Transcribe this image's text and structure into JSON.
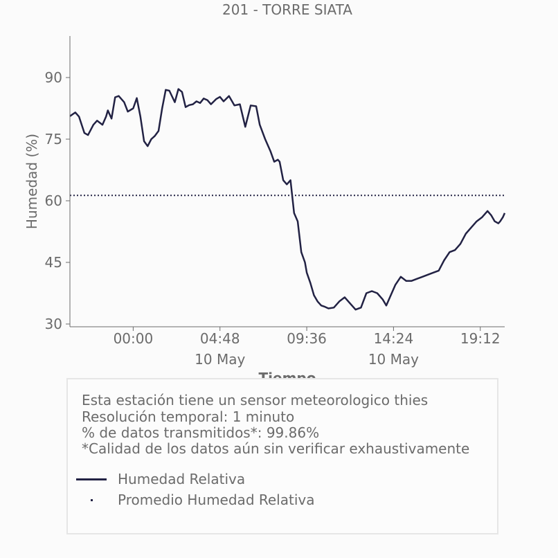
{
  "chart_data": {
    "type": "line",
    "title": "201 - TORRE SIATA",
    "xlabel": "Tiempo",
    "ylabel": "Humedad (%)",
    "ylim": [
      29.3,
      90.0
    ],
    "y_ticks": [
      30,
      45,
      60,
      75,
      90
    ],
    "y_tick_labels": [
      "30",
      "45",
      "60",
      "75",
      "90"
    ],
    "x_ticks": [
      {
        "label": "00:00",
        "sublabel": "",
        "hour": 0.0
      },
      {
        "label": "04:48",
        "sublabel": "10 May",
        "hour": 4.8
      },
      {
        "label": "09:36",
        "sublabel": "",
        "hour": 9.6
      },
      {
        "label": "14:24",
        "sublabel": "10 May",
        "hour": 14.4
      },
      {
        "label": "19:12",
        "sublabel": "",
        "hour": 19.2
      }
    ],
    "x_range_hours": [
      -3.5,
      20.55
    ],
    "grid": false,
    "legend_placement": "bottom",
    "series": [
      {
        "name": "Humedad Relativa",
        "style": "solid",
        "color": "#222244",
        "x_hours": [
          -3.5,
          -3.2,
          -3.0,
          -2.7,
          -2.5,
          -2.2,
          -2.0,
          -1.7,
          -1.5,
          -1.4,
          -1.2,
          -1.0,
          -0.8,
          -0.5,
          -0.3,
          0.0,
          0.2,
          0.4,
          0.6,
          0.8,
          1.0,
          1.2,
          1.4,
          1.6,
          1.8,
          2.0,
          2.3,
          2.5,
          2.7,
          2.9,
          3.1,
          3.3,
          3.5,
          3.7,
          3.9,
          4.1,
          4.3,
          4.6,
          4.8,
          5.0,
          5.3,
          5.6,
          5.9,
          6.2,
          6.5,
          6.8,
          7.0,
          7.3,
          7.6,
          7.8,
          8.0,
          8.1,
          8.3,
          8.5,
          8.7,
          8.9,
          9.1,
          9.3,
          9.5,
          9.6,
          9.8,
          10.0,
          10.2,
          10.4,
          10.6,
          10.8,
          11.1,
          11.4,
          11.7,
          12.0,
          12.3,
          12.6,
          12.9,
          13.2,
          13.5,
          13.8,
          14.0,
          14.2,
          14.5,
          14.8,
          15.1,
          15.4,
          15.7,
          16.0,
          16.3,
          16.6,
          16.9,
          17.2,
          17.5,
          17.8,
          18.1,
          18.4,
          18.7,
          19.0,
          19.3,
          19.6,
          19.8,
          20.0,
          20.2,
          20.3,
          20.45,
          20.55
        ],
        "y": [
          80.6,
          81.5,
          80.5,
          76.5,
          76.0,
          78.5,
          79.5,
          78.5,
          80.5,
          82.0,
          80.0,
          85.2,
          85.5,
          84.0,
          81.7,
          82.5,
          85.0,
          80.5,
          74.5,
          73.3,
          75.0,
          75.8,
          77.0,
          82.5,
          87.0,
          86.8,
          84.0,
          87.2,
          86.5,
          82.8,
          83.3,
          83.5,
          84.2,
          83.8,
          84.9,
          84.5,
          83.5,
          84.8,
          85.3,
          84.2,
          85.5,
          83.2,
          83.5,
          78.0,
          83.2,
          83.0,
          78.5,
          75.0,
          72.0,
          69.5,
          70.0,
          69.5,
          65.0,
          64.0,
          65.0,
          57.0,
          55.0,
          47.5,
          45.0,
          42.5,
          40.0,
          37.0,
          35.5,
          34.5,
          34.2,
          33.8,
          34.0,
          35.5,
          36.5,
          35.0,
          33.5,
          34.0,
          37.5,
          38.0,
          37.5,
          36.0,
          34.5,
          36.5,
          39.5,
          41.5,
          40.5,
          40.5,
          41.0,
          41.5,
          42.0,
          42.5,
          43.0,
          45.5,
          47.5,
          48.0,
          49.5,
          52.0,
          53.5,
          55.0,
          56.0,
          57.5,
          56.5,
          55.0,
          54.5,
          55.0,
          56.0,
          57.0
        ]
      },
      {
        "name": "Promedio Humedad Relativa",
        "style": "dotted",
        "color": "#222244",
        "constant": 61.3
      }
    ]
  },
  "info_box": {
    "lines": [
      "Esta estación tiene un sensor meteorologico thies",
      "Resolución temporal: 1 minuto",
      "% de datos transmitidos*: 99.86%",
      "*Calidad de los datos aún sin verificar exhaustivamente"
    ],
    "legend": [
      "Humedad Relativa",
      "Promedio Humedad Relativa"
    ]
  }
}
